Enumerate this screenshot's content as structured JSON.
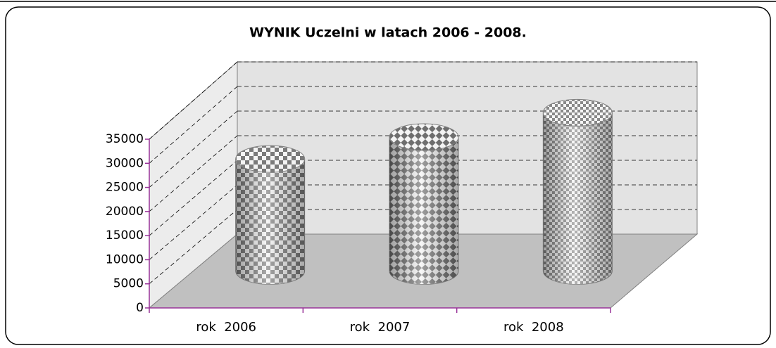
{
  "chart_data": {
    "type": "cylinder3d",
    "title": "WYNIK Uczelni w latach 2006 - 2008.",
    "categories": [
      "rok  2006",
      "rok  2007",
      "rok  2008"
    ],
    "values": [
      23000,
      27500,
      32500
    ],
    "color": "#808080",
    "ylim": [
      0,
      35000
    ],
    "yticks": [
      0,
      5000,
      10000,
      15000,
      20000,
      25000,
      30000,
      35000
    ],
    "grid": true
  }
}
